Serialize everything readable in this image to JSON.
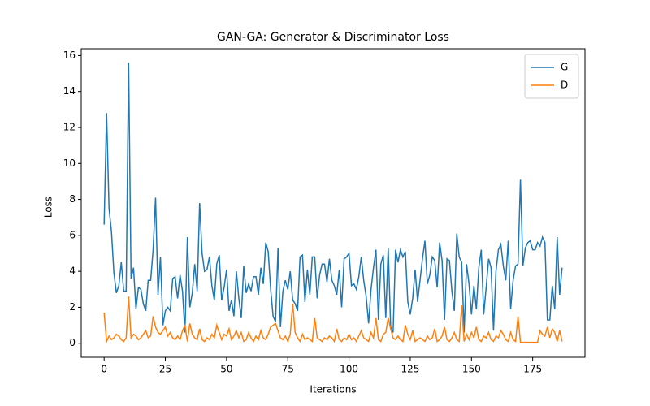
{
  "chart_data": {
    "type": "line",
    "title": "GAN-GA: Generator & Discriminator Loss",
    "x_label": "Iterations",
    "y_label": "Loss",
    "xlim": [
      -9.35,
      196.35
    ],
    "xticks": [
      0,
      25,
      50,
      75,
      100,
      125,
      150,
      175
    ],
    "ylim": [
      -0.78,
      16.38
    ],
    "yticks": [
      0,
      2,
      4,
      6,
      8,
      10,
      12,
      14,
      16
    ],
    "legend": "upper right",
    "series": [
      {
        "name": "G",
        "color": "#1f77b4",
        "values": [
          6.6,
          12.8,
          7.5,
          6.2,
          3.9,
          2.8,
          3.2,
          4.5,
          2.9,
          2.9,
          15.6,
          3.6,
          4.2,
          1.9,
          3.1,
          3.0,
          2.2,
          1.8,
          3.5,
          3.5,
          5.2,
          8.1,
          2.7,
          4.8,
          1.0,
          1.8,
          2.0,
          1.8,
          3.6,
          3.7,
          2.5,
          3.8,
          2.9,
          0.6,
          5.9,
          2.0,
          2.8,
          4.4,
          2.9,
          7.8,
          5.0,
          4.0,
          4.1,
          4.8,
          3.2,
          2.4,
          4.4,
          4.9,
          2.4,
          3.1,
          4.1,
          1.8,
          2.4,
          1.5,
          4.0,
          2.5,
          1.4,
          4.3,
          2.8,
          3.3,
          2.9,
          3.7,
          3.7,
          2.7,
          4.2,
          3.3,
          5.6,
          5.1,
          3.0,
          1.5,
          1.2,
          5.3,
          0.9,
          2.9,
          3.5,
          3.0,
          4.0,
          2.4,
          2.2,
          1.8,
          4.8,
          4.9,
          2.3,
          4.1,
          2.7,
          4.8,
          4.8,
          2.5,
          3.8,
          4.4,
          4.4,
          3.4,
          4.7,
          3.5,
          3.2,
          2.7,
          4.1,
          2.0,
          4.7,
          4.8,
          5.0,
          3.2,
          3.3,
          3.0,
          3.7,
          4.8,
          3.5,
          2.6,
          1.1,
          3.0,
          4.2,
          5.2,
          1.3,
          4.4,
          4.9,
          1.4,
          5.3,
          0.9,
          0.6,
          5.2,
          4.5,
          5.2,
          4.8,
          5.1,
          2.3,
          1.6,
          2.5,
          4.1,
          2.3,
          3.5,
          4.7,
          5.7,
          3.3,
          3.8,
          4.8,
          4.6,
          3.1,
          5.6,
          4.6,
          1.3,
          4.7,
          4.6,
          2.9,
          1.8,
          6.1,
          4.8,
          4.5,
          0.6,
          4.4,
          3.3,
          1.6,
          3.2,
          1.9,
          4.2,
          5.2,
          1.6,
          3.1,
          4.7,
          4.2,
          0.7,
          4.0,
          5.2,
          5.5,
          4.3,
          3.5,
          5.7,
          1.9,
          3.5,
          4.3,
          4.4,
          9.1,
          4.3,
          5.3,
          5.6,
          5.7,
          5.2,
          5.2,
          5.6,
          5.4,
          5.9,
          5.6,
          1.3,
          1.3,
          3.2,
          1.9,
          5.9,
          2.7,
          4.2
        ]
      },
      {
        "name": "D",
        "color": "#ff7f0e",
        "values": [
          1.7,
          0.1,
          0.4,
          0.2,
          0.3,
          0.5,
          0.4,
          0.2,
          0.1,
          0.3,
          2.6,
          0.3,
          0.5,
          0.4,
          0.2,
          0.3,
          0.5,
          0.7,
          0.3,
          0.4,
          1.5,
          0.9,
          0.6,
          0.5,
          0.7,
          0.9,
          0.4,
          0.6,
          0.3,
          0.2,
          0.4,
          0.2,
          0.7,
          1.0,
          0.1,
          1.1,
          0.5,
          0.3,
          0.2,
          0.8,
          0.2,
          0.1,
          0.3,
          0.2,
          0.5,
          0.3,
          1.0,
          0.6,
          0.2,
          0.5,
          0.4,
          0.8,
          0.2,
          0.4,
          0.7,
          0.3,
          0.6,
          0.1,
          0.2,
          0.6,
          0.3,
          0.1,
          0.4,
          0.2,
          0.7,
          0.3,
          0.2,
          0.5,
          0.9,
          1.0,
          1.1,
          0.7,
          0.3,
          0.2,
          0.4,
          0.1,
          0.5,
          2.2,
          0.6,
          0.3,
          0.1,
          0.5,
          0.2,
          0.3,
          0.2,
          0.1,
          1.4,
          0.3,
          0.2,
          0.1,
          0.3,
          0.2,
          0.4,
          0.3,
          0.1,
          0.8,
          0.2,
          0.1,
          0.3,
          0.2,
          0.5,
          0.2,
          0.3,
          0.1,
          0.4,
          0.7,
          0.3,
          0.2,
          0.1,
          0.6,
          0.3,
          1.4,
          0.2,
          0.1,
          0.5,
          0.6,
          1.4,
          0.8,
          0.3,
          0.2,
          0.4,
          0.2,
          0.1,
          1.0,
          0.5,
          0.2,
          0.7,
          0.1,
          0.2,
          0.3,
          0.2,
          0.1,
          0.4,
          0.2,
          0.3,
          0.8,
          0.1,
          0.2,
          0.4,
          0.9,
          0.2,
          0.1,
          0.3,
          0.6,
          0.2,
          0.1,
          2.1,
          0.1,
          0.5,
          0.2,
          0.6,
          0.3,
          0.9,
          0.2,
          0.1,
          0.4,
          0.3,
          0.6,
          0.2,
          0.1,
          0.4,
          0.3,
          0.7,
          0.5,
          0.2,
          0.1,
          0.6,
          0.2,
          0.1,
          1.5,
          0.05,
          0.05,
          0.05,
          0.05,
          0.05,
          0.05,
          0.05,
          0.05,
          0.7,
          0.5,
          0.4,
          0.9,
          0.3,
          0.8,
          0.6,
          0.1,
          0.7,
          0.1
        ]
      }
    ]
  }
}
